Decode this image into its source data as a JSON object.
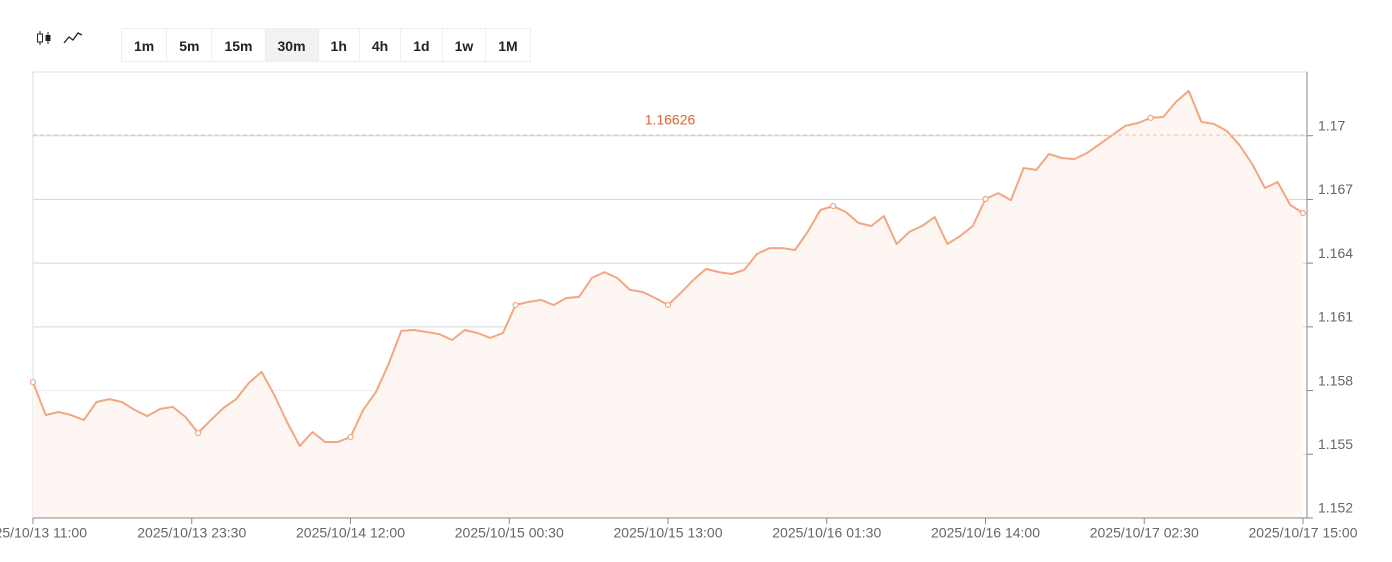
{
  "toolbar": {
    "intervals": [
      "1m",
      "5m",
      "15m",
      "30m",
      "1h",
      "4h",
      "1d",
      "1w",
      "1M"
    ],
    "active_index": 3
  },
  "chart_data": {
    "type": "line",
    "color": "#f2a783",
    "area_color": "#fdf6f2",
    "annotation": "1.16626",
    "annotation_color": "#e0622c",
    "ylim": [
      1.152,
      1.173
    ],
    "yticks": [
      1.152,
      1.155,
      1.158,
      1.161,
      1.164,
      1.167,
      1.17
    ],
    "xticks": [
      "2025/10/13 11:00",
      "2025/10/13 23:30",
      "2025/10/14 12:00",
      "2025/10/15 00:30",
      "2025/10/15 13:00",
      "2025/10/16 01:30",
      "2025/10/16 14:00",
      "2025/10/17 02:30",
      "2025/10/17 15:00"
    ],
    "grid": true,
    "values": [
      1.1584,
      1.15685,
      1.15699,
      1.15685,
      1.15661,
      1.15746,
      1.1576,
      1.15746,
      1.15709,
      1.1568,
      1.15713,
      1.15723,
      1.15676,
      1.156,
      1.15661,
      1.15718,
      1.1576,
      1.15836,
      1.15888,
      1.15779,
      1.15652,
      1.15539,
      1.15605,
      1.15558,
      1.15558,
      1.15581,
      1.15709,
      1.15793,
      1.15925,
      1.16081,
      1.16085,
      1.16076,
      1.16066,
      1.16038,
      1.16085,
      1.16071,
      1.16048,
      1.16071,
      1.16203,
      1.16217,
      1.16227,
      1.16203,
      1.16236,
      1.16241,
      1.1633,
      1.16358,
      1.1633,
      1.16274,
      1.16264,
      1.16236,
      1.16203,
      1.1626,
      1.16321,
      1.16373,
      1.16358,
      1.16349,
      1.16368,
      1.16443,
      1.16471,
      1.16471,
      1.16462,
      1.16547,
      1.1665,
      1.16669,
      1.16641,
      1.16589,
      1.16575,
      1.16622,
      1.1649,
      1.16547,
      1.16575,
      1.16617,
      1.1649,
      1.16528,
      1.16575,
      1.16702,
      1.1673,
      1.16697,
      1.16848,
      1.16839,
      1.16914,
      1.16895,
      1.1689,
      1.16919,
      1.16961,
      1.17004,
      1.17046,
      1.1706,
      1.17084,
      1.17088,
      1.17159,
      1.17211,
      1.17065,
      1.17055,
      1.17022,
      1.16956,
      1.16867,
      1.16754,
      1.16782,
      1.16674,
      1.16636
    ]
  }
}
